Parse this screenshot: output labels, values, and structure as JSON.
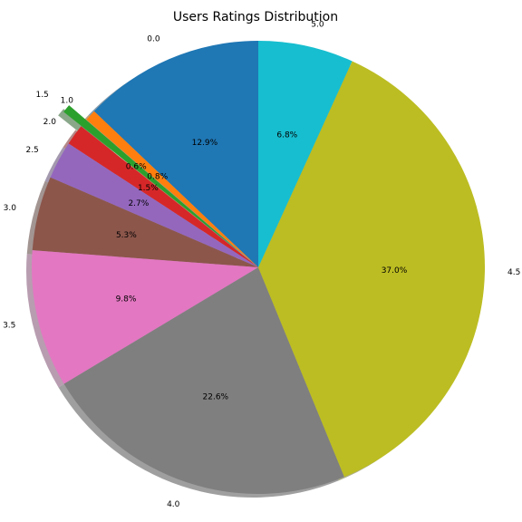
{
  "chart_data": {
    "type": "pie",
    "title": "Users Ratings Distribution",
    "start_angle_deg": 90,
    "direction": "counterclockwise",
    "shadow": true,
    "categories": [
      "0.0",
      "1.0",
      "1.5",
      "2.0",
      "2.5",
      "3.0",
      "3.5",
      "4.0",
      "4.5",
      "5.0"
    ],
    "values": [
      12.9,
      0.8,
      0.6,
      1.5,
      2.7,
      5.3,
      9.8,
      22.6,
      37.0,
      6.8
    ],
    "data_labels": [
      "12.9%",
      "0.8%",
      "0.6%",
      "1.5%",
      "2.7%",
      "5.3%",
      "9.8%",
      "22.6%",
      "37.0%",
      "6.8%"
    ],
    "explode": [
      0,
      0,
      0.1,
      0,
      0,
      0,
      0,
      0,
      0,
      0
    ],
    "colors": [
      "#1f77b4",
      "#ff7f0e",
      "#2ca02c",
      "#d62728",
      "#9467bd",
      "#8c564b",
      "#e377c2",
      "#7f7f7f",
      "#bcbd22",
      "#17becf"
    ]
  }
}
